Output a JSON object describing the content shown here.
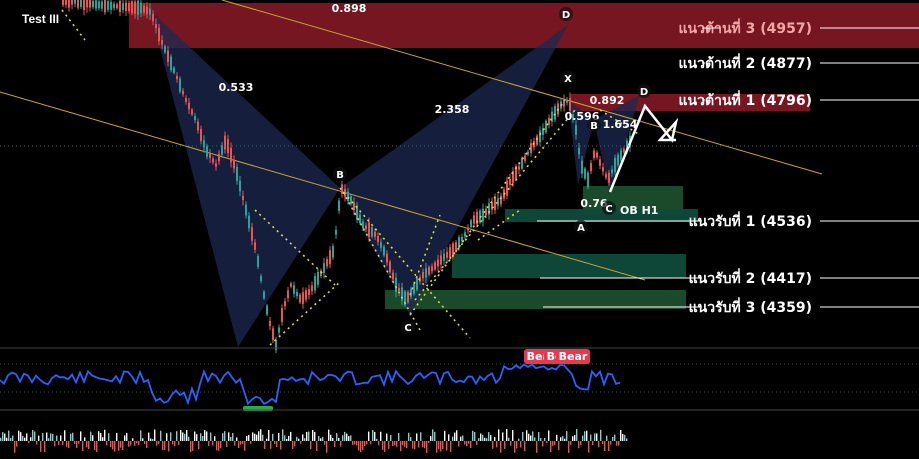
{
  "title": "Test III",
  "colors": {
    "background": "#000000",
    "resistance_zone": "#8b1a26",
    "support_zone": "#1b4e2c",
    "support_zone_teal": "#0f4a3a",
    "pattern_fill": "#1c2a52",
    "trendline": "#c9a33a",
    "bull_candle": "#26a69a",
    "bear_candle": "#ef5350",
    "rsi_line": "#2962ff",
    "projection": "#ffffff",
    "dotted": "#d8d84a"
  },
  "chart_data": [
    {
      "type": "line",
      "subtype": "candlestick with harmonic pattern annotations",
      "levels": [
        {
          "label": "แนวต้านที่ 3 (4957)",
          "value": 4957,
          "kind": "resistance",
          "color": "#f4a6a6"
        },
        {
          "label": "แนวต้านที่ 2 (4877)",
          "value": 4877,
          "kind": "resistance",
          "color": "#ffffff"
        },
        {
          "label": "แนวต้านที่ 1 (4796)",
          "value": 4796,
          "kind": "resistance",
          "color": "#ffffff"
        },
        {
          "label": "แนวรับที่ 1 (4536)",
          "value": 4536,
          "kind": "support",
          "color": "#ffffff"
        },
        {
          "label": "แนวรับที่ 2 (4417)",
          "value": 4417,
          "kind": "support",
          "color": "#ffffff"
        },
        {
          "label": "แนวรับที่ 3 (4359)",
          "value": 4359,
          "kind": "support",
          "color": "#ffffff"
        }
      ],
      "pattern_ratios": [
        "0.898",
        "0.533",
        "2.358",
        "0.892",
        "0.596",
        "1.654",
        "0.76"
      ],
      "pattern_points": [
        "B",
        "C",
        "D",
        "X",
        "D",
        "B",
        "C",
        "A"
      ],
      "zone_label": "OB H1",
      "indicator_tags": [
        "Bear",
        "Bear",
        "Bear"
      ],
      "grid": false,
      "legend": "none"
    }
  ]
}
